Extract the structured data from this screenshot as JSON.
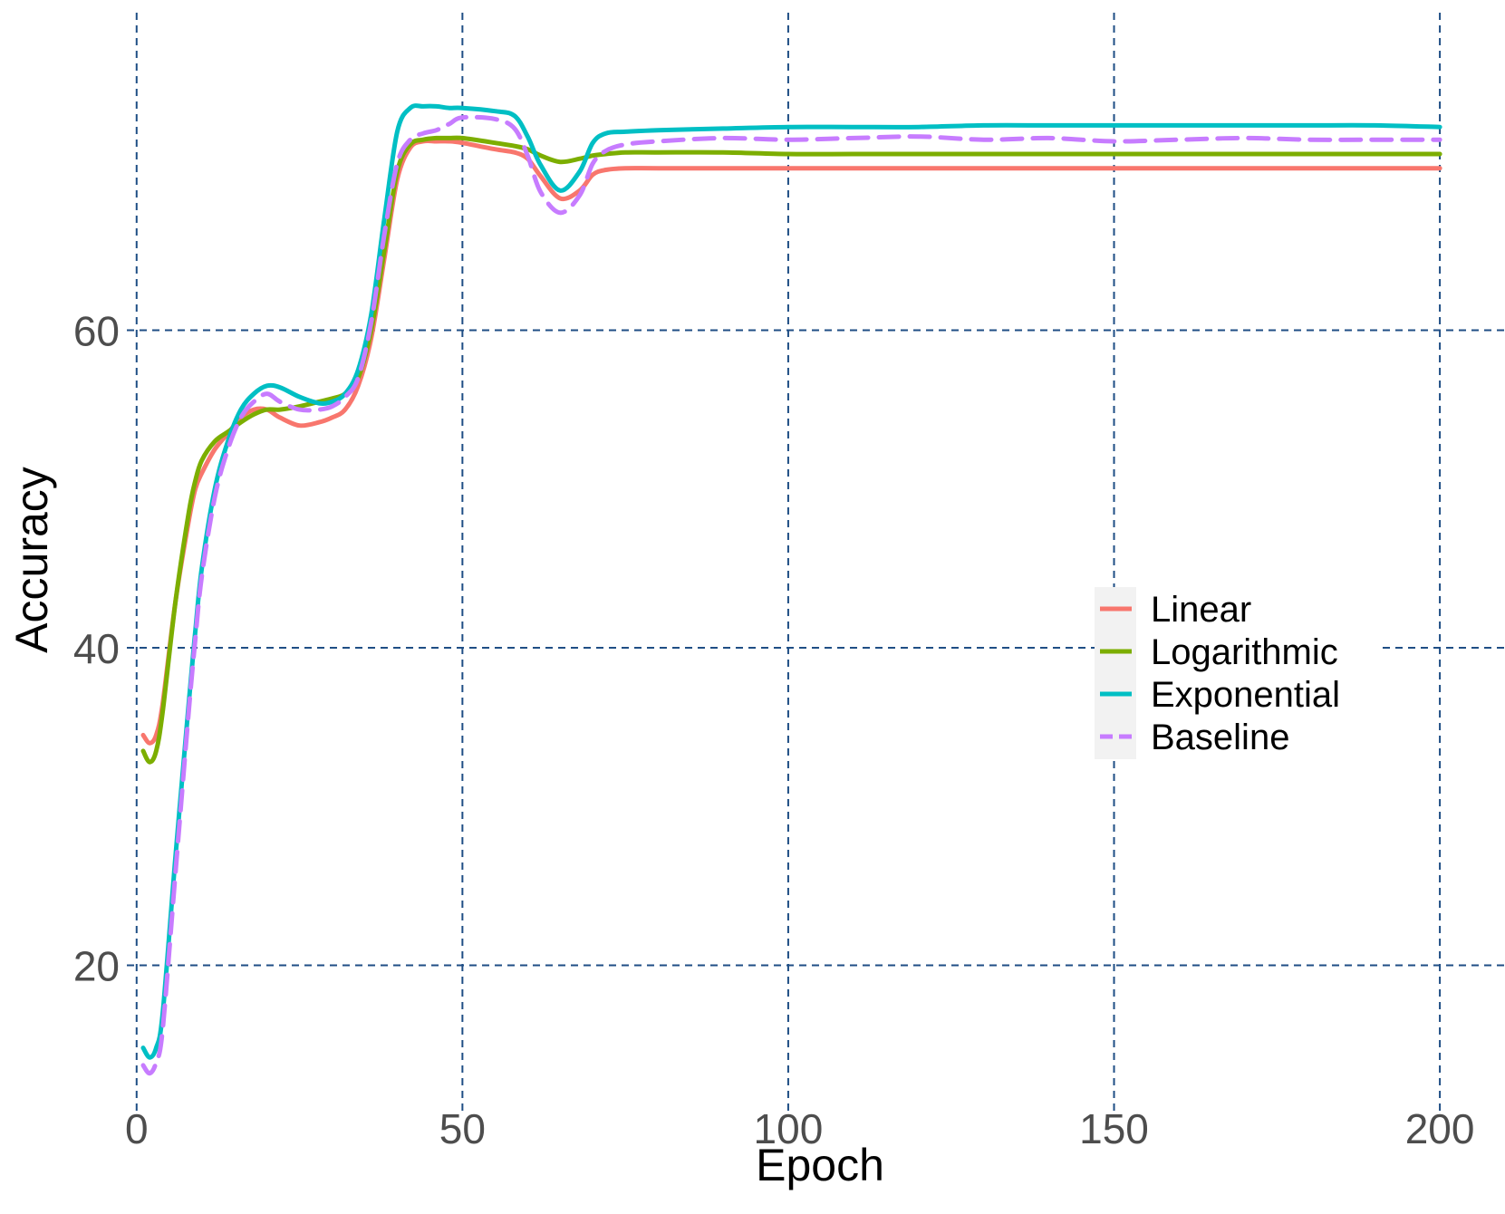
{
  "chart_data": {
    "type": "line",
    "title": "",
    "xlabel": "Epoch",
    "ylabel": "Accuracy",
    "xlim": [
      -1.5,
      210
    ],
    "ylim": [
      10.5,
      80
    ],
    "xticks": [
      0,
      50,
      100,
      150,
      200
    ],
    "yticks": [
      20,
      40,
      60
    ],
    "grid": true,
    "legend_position": "center-right",
    "x": [
      1,
      2,
      3,
      4,
      6,
      8,
      9,
      10,
      12,
      14,
      16,
      18,
      20,
      22,
      25,
      28,
      30,
      32,
      34,
      36,
      38,
      40,
      42,
      44,
      46,
      48,
      50,
      55,
      58,
      60,
      62,
      65,
      68,
      70,
      72,
      75,
      80,
      90,
      100,
      110,
      120,
      130,
      140,
      150,
      160,
      170,
      180,
      190,
      200
    ],
    "series": [
      {
        "name": "Linear",
        "color": "#f8766d",
        "dash": "solid",
        "values": [
          34.5,
          34.0,
          34.5,
          36.5,
          43.0,
          48.0,
          50.0,
          51.0,
          52.5,
          53.5,
          54.5,
          55.0,
          55.0,
          54.5,
          54.0,
          54.2,
          54.5,
          55.0,
          56.5,
          59.5,
          64.5,
          69.5,
          71.5,
          71.9,
          71.9,
          71.9,
          71.8,
          71.4,
          71.2,
          70.8,
          69.7,
          68.3,
          68.8,
          69.8,
          70.1,
          70.2,
          70.2,
          70.2,
          70.2,
          70.2,
          70.2,
          70.2,
          70.2,
          70.2,
          70.2,
          70.2,
          70.2,
          70.2,
          70.2
        ]
      },
      {
        "name": "Logarithmic",
        "color": "#7cae00",
        "dash": "solid",
        "values": [
          33.5,
          32.8,
          33.5,
          36.0,
          43.0,
          48.5,
          50.5,
          51.8,
          53.0,
          53.6,
          54.2,
          54.7,
          55.0,
          55.0,
          55.2,
          55.5,
          55.7,
          56.0,
          57.0,
          60.0,
          65.0,
          70.0,
          71.7,
          72.0,
          72.1,
          72.1,
          72.1,
          71.8,
          71.6,
          71.4,
          71.0,
          70.6,
          70.8,
          71.0,
          71.1,
          71.2,
          71.2,
          71.2,
          71.1,
          71.1,
          71.1,
          71.1,
          71.1,
          71.1,
          71.1,
          71.1,
          71.1,
          71.1,
          71.1
        ]
      },
      {
        "name": "Exponential",
        "color": "#00bfc4",
        "dash": "solid",
        "values": [
          14.8,
          14.2,
          14.8,
          17.0,
          27.0,
          36.5,
          41.0,
          45.0,
          50.0,
          53.0,
          55.0,
          56.0,
          56.5,
          56.4,
          55.8,
          55.4,
          55.5,
          56.0,
          57.5,
          61.0,
          67.0,
          72.5,
          74.0,
          74.1,
          74.1,
          74.0,
          74.0,
          73.8,
          73.5,
          72.2,
          70.4,
          68.8,
          70.0,
          71.8,
          72.4,
          72.5,
          72.6,
          72.7,
          72.8,
          72.8,
          72.8,
          72.9,
          72.9,
          72.9,
          72.9,
          72.9,
          72.9,
          72.9,
          72.8
        ]
      },
      {
        "name": "Baseline",
        "color": "#c77cff",
        "dash": "dashed",
        "values": [
          13.7,
          13.2,
          13.9,
          16.0,
          26.0,
          36.0,
          40.5,
          44.5,
          49.5,
          52.5,
          54.5,
          55.5,
          56.0,
          55.5,
          55.0,
          55.0,
          55.2,
          55.8,
          57.0,
          60.5,
          66.0,
          70.5,
          72.0,
          72.4,
          72.6,
          73.0,
          73.4,
          73.3,
          72.7,
          71.0,
          68.7,
          67.4,
          68.5,
          70.5,
          71.3,
          71.7,
          71.9,
          72.1,
          72.0,
          72.1,
          72.2,
          72.0,
          72.1,
          71.9,
          72.0,
          72.1,
          72.0,
          72.0,
          72.0
        ]
      }
    ]
  }
}
